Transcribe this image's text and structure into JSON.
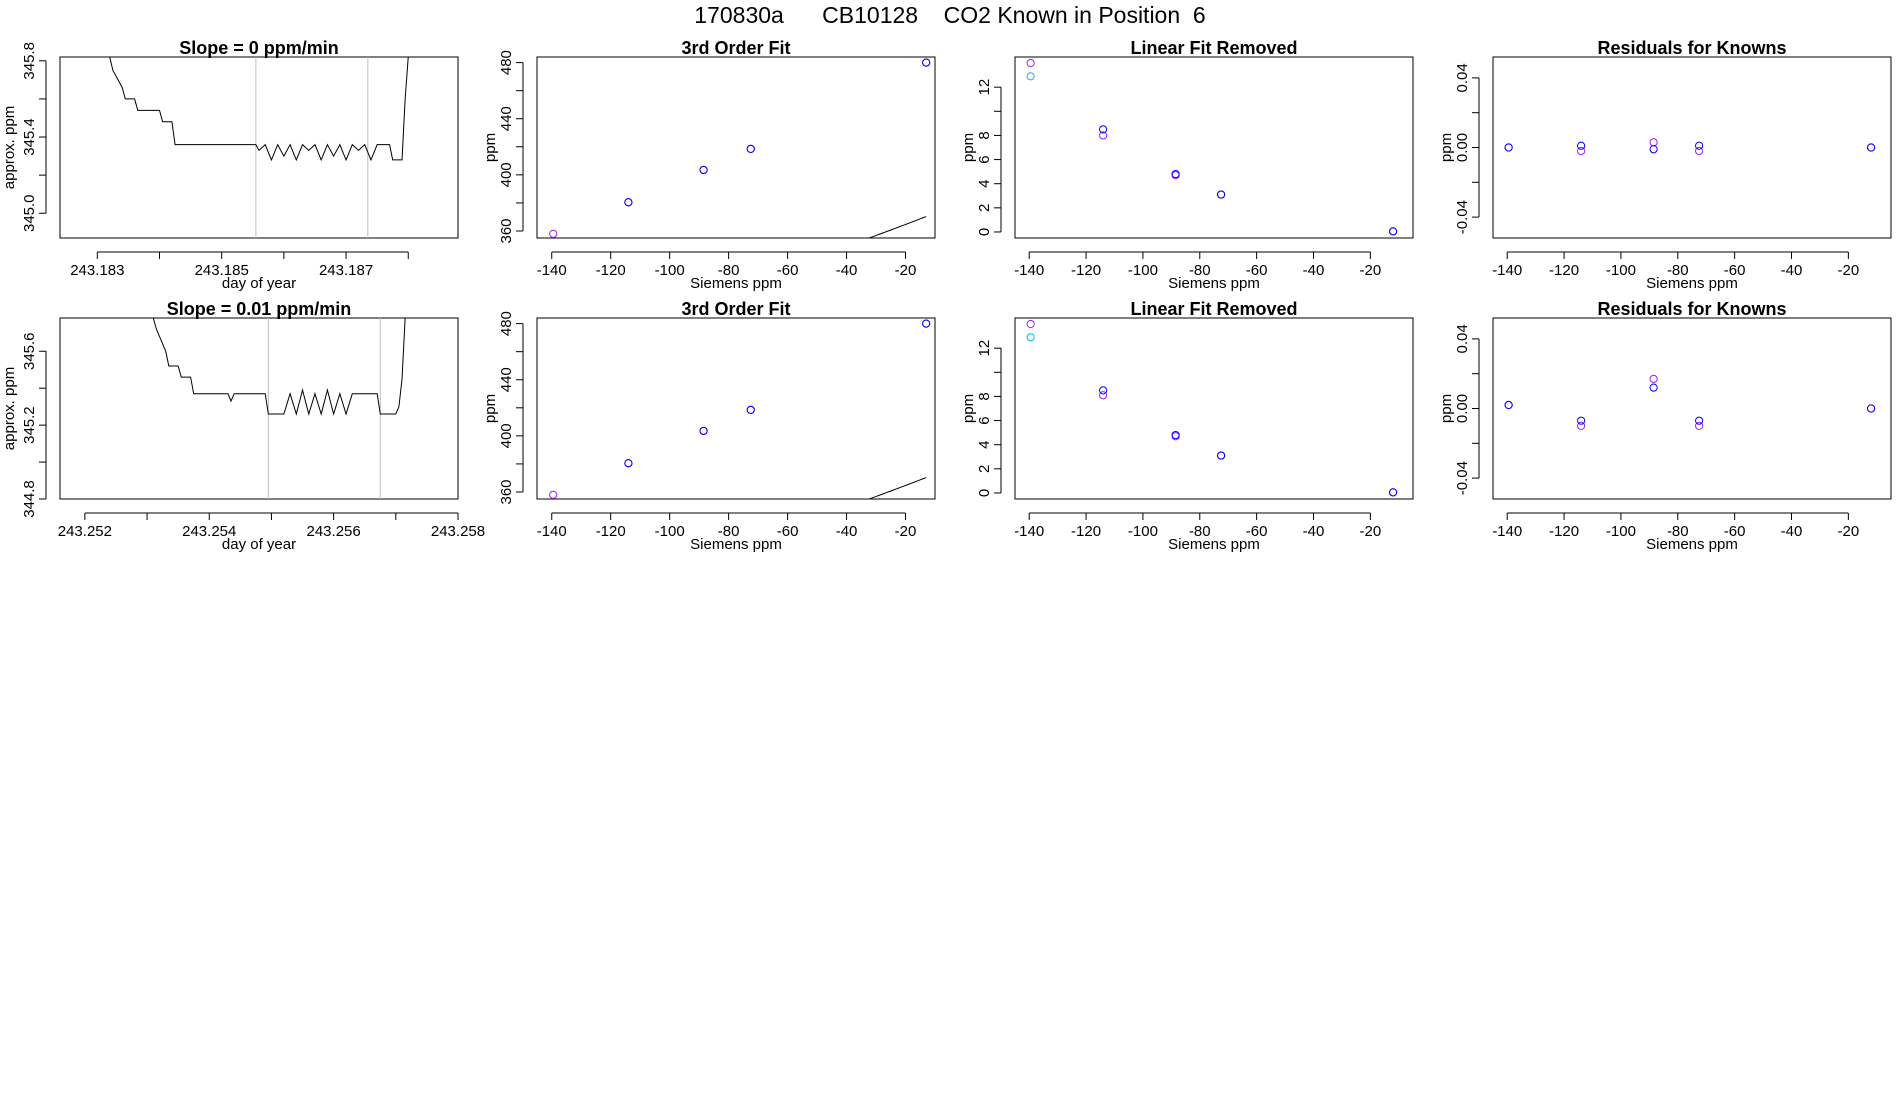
{
  "title": "170830a      CB10128    CO2 Known in Position  6",
  "colors": {
    "axis": "#000000",
    "grid": "#bebebe",
    "line": "#000000",
    "blue": "#0000ff",
    "violet": "#a020f0",
    "cyan": "#00bfd8"
  },
  "chart_data": [
    {
      "type": "line",
      "title": "Slope =  0  ppm/min",
      "xlabel": "day of year",
      "ylabel": "approx. ppm",
      "xticks": [
        243.183,
        243.184,
        243.185,
        243.186,
        243.187,
        243.188
      ],
      "xtick_labels": [
        "243.183",
        "",
        "243.185",
        "",
        "243.187",
        ""
      ],
      "yticks": [
        345.0,
        345.2,
        345.4,
        345.6,
        345.8
      ],
      "ytick_labels": [
        "345.0",
        "",
        "345.4",
        "",
        "345.8"
      ],
      "xlim": [
        243.1824,
        243.1888
      ],
      "ylim": [
        344.87,
        345.82
      ],
      "vlines": [
        243.18555,
        243.18735
      ],
      "grid": false,
      "x": [
        243.1832,
        243.18325,
        243.1833,
        243.1834,
        243.18345,
        243.1836,
        243.18365,
        243.184,
        243.18405,
        243.1842,
        243.18425,
        243.18555,
        243.1856,
        243.1857,
        243.1858,
        243.1859,
        243.186,
        243.1861,
        243.1862,
        243.1863,
        243.1864,
        243.1865,
        243.1866,
        243.1867,
        243.1868,
        243.1869,
        243.187,
        243.1871,
        243.1872,
        243.1873,
        243.1874,
        243.1875,
        243.1876,
        243.1877,
        243.18775,
        243.1879,
        243.18795,
        243.188
      ],
      "y": [
        345.82,
        345.75,
        345.72,
        345.66,
        345.6,
        345.6,
        345.54,
        345.54,
        345.48,
        345.48,
        345.36,
        345.36,
        345.33,
        345.36,
        345.28,
        345.36,
        345.3,
        345.36,
        345.28,
        345.36,
        345.33,
        345.36,
        345.28,
        345.36,
        345.3,
        345.36,
        345.28,
        345.36,
        345.33,
        345.36,
        345.28,
        345.36,
        345.36,
        345.36,
        345.28,
        345.28,
        345.6,
        345.82
      ]
    },
    {
      "type": "scatter",
      "title": "3rd Order Fit",
      "xlabel": "Siemens ppm",
      "ylabel": "ppm",
      "xticks": [
        -140,
        -120,
        -100,
        -80,
        -60,
        -40,
        -20
      ],
      "xlim": [
        -145,
        -10
      ],
      "yticks": [
        360,
        380,
        400,
        420,
        440,
        460,
        480
      ],
      "ytick_labels": [
        "360",
        "",
        "400",
        "",
        "440",
        "",
        "480"
      ],
      "ylim": [
        355,
        484
      ],
      "curve": {
        "from": -140,
        "to": -13,
        "coef": [
          381.0,
          0.84,
          0.0012,
          3.5e-06
        ]
      },
      "series": [
        {
          "color": "violet",
          "x": [
            -139.5,
            -114.0,
            -88.5,
            -72.5,
            -13.0
          ],
          "y": [
            358.0,
            380.5,
            403.5,
            418.5,
            480.0
          ]
        },
        {
          "color": "blue",
          "x": [
            -114.0,
            -88.5,
            -72.5,
            -13.0
          ],
          "y": [
            380.5,
            403.5,
            418.5,
            480.0
          ]
        }
      ]
    },
    {
      "type": "scatter",
      "title": "Linear Fit Removed",
      "xlabel": "Siemens ppm",
      "ylabel": "ppm",
      "xticks": [
        -140,
        -120,
        -100,
        -80,
        -60,
        -40,
        -20
      ],
      "xlim": [
        -145,
        -5
      ],
      "yticks": [
        0,
        2,
        4,
        6,
        8,
        10,
        12
      ],
      "ytick_labels": [
        "0",
        "2",
        "4",
        "6",
        "8",
        "",
        "12"
      ],
      "ylim": [
        -0.5,
        14.5
      ],
      "curve": {
        "from": -140,
        "to": -12,
        "coef": [
          0.73,
          0.178,
          0.00134,
          3.5e-06
        ]
      },
      "series": [
        {
          "color": "violet",
          "x": [
            -139.5,
            -114.0,
            -88.5,
            -72.5,
            -12.0
          ],
          "y": [
            14.0,
            8.0,
            4.7,
            3.1,
            0.05
          ]
        },
        {
          "color": "cyan",
          "x": [
            -139.5
          ],
          "y": [
            12.9
          ]
        },
        {
          "color": "blue",
          "x": [
            -114.0,
            -88.5,
            -72.5,
            -12.0
          ],
          "y": [
            8.5,
            4.8,
            3.1,
            0.05
          ]
        }
      ]
    },
    {
      "type": "scatter",
      "title": "Residuals for Knowns",
      "xlabel": "Siemens ppm",
      "ylabel": "ppm",
      "xticks": [
        -140,
        -120,
        -100,
        -80,
        -60,
        -40,
        -20
      ],
      "xlim": [
        -145,
        -5
      ],
      "yticks": [
        -0.04,
        -0.02,
        0.0,
        0.02,
        0.04
      ],
      "ytick_labels": [
        "-0.04",
        "",
        "0.00",
        "",
        "0.04"
      ],
      "ylim": [
        -0.052,
        0.052
      ],
      "series": [
        {
          "color": "violet",
          "x": [
            -139.5,
            -114.0,
            -88.5,
            -72.5,
            -12.0
          ],
          "y": [
            0.0,
            -0.002,
            0.003,
            -0.002,
            0.0
          ]
        },
        {
          "color": "blue",
          "x": [
            -139.5,
            -114.0,
            -88.5,
            -72.5,
            -12.0
          ],
          "y": [
            0.0,
            0.001,
            -0.001,
            0.001,
            0.0
          ]
        }
      ]
    },
    {
      "type": "line",
      "title": "Slope =  0.01  ppm/min",
      "xlabel": "day of year",
      "ylabel": "approx. ppm",
      "xticks": [
        243.252,
        243.253,
        243.254,
        243.255,
        243.256,
        243.257,
        243.258
      ],
      "xtick_labels": [
        "243.252",
        "",
        "243.254",
        "",
        "243.256",
        "",
        "243.258"
      ],
      "yticks": [
        344.8,
        345.0,
        345.2,
        345.4,
        345.6
      ],
      "ytick_labels": [
        "344.8",
        "",
        "345.2",
        "",
        "345.6"
      ],
      "xlim": [
        243.2516,
        243.258
      ],
      "ylim": [
        344.8,
        345.78
      ],
      "vlines": [
        243.25495,
        243.25675
      ],
      "grid": false,
      "x": [
        243.2531,
        243.25315,
        243.2532,
        243.2533,
        243.25335,
        243.2535,
        243.25355,
        243.2537,
        243.25375,
        243.2543,
        243.25435,
        243.2544,
        243.2549,
        243.25495,
        243.2552,
        243.2553,
        243.2554,
        243.2555,
        243.2556,
        243.2557,
        243.2558,
        243.2559,
        243.256,
        243.2561,
        243.2562,
        243.2563,
        243.2564,
        243.2565,
        243.2566,
        243.2567,
        243.25675,
        243.257,
        243.25705,
        243.2571,
        243.25715
      ],
      "y": [
        345.78,
        345.72,
        345.68,
        345.6,
        345.52,
        345.52,
        345.46,
        345.46,
        345.37,
        345.37,
        345.33,
        345.37,
        345.37,
        345.26,
        345.26,
        345.37,
        345.26,
        345.39,
        345.26,
        345.37,
        345.26,
        345.39,
        345.26,
        345.37,
        345.26,
        345.37,
        345.37,
        345.37,
        345.37,
        345.37,
        345.26,
        345.26,
        345.3,
        345.45,
        345.78
      ]
    },
    {
      "type": "scatter",
      "title": "3rd Order Fit",
      "xlabel": "Siemens ppm",
      "ylabel": "ppm",
      "xticks": [
        -140,
        -120,
        -100,
        -80,
        -60,
        -40,
        -20
      ],
      "xlim": [
        -145,
        -10
      ],
      "yticks": [
        360,
        380,
        400,
        420,
        440,
        460,
        480
      ],
      "ytick_labels": [
        "360",
        "",
        "400",
        "",
        "440",
        "",
        "480"
      ],
      "ylim": [
        355,
        484
      ],
      "curve": {
        "from": -140,
        "to": -13,
        "coef": [
          381.0,
          0.84,
          0.0012,
          3.5e-06
        ]
      },
      "series": [
        {
          "color": "violet",
          "x": [
            -139.5,
            -114.0,
            -88.5,
            -72.5,
            -13.0
          ],
          "y": [
            358.0,
            380.5,
            403.5,
            418.5,
            480.0
          ]
        },
        {
          "color": "blue",
          "x": [
            -114.0,
            -88.5,
            -72.5,
            -13.0
          ],
          "y": [
            380.5,
            403.5,
            418.5,
            480.0
          ]
        }
      ]
    },
    {
      "type": "scatter",
      "title": "Linear Fit Removed",
      "xlabel": "Siemens ppm",
      "ylabel": "ppm",
      "xticks": [
        -140,
        -120,
        -100,
        -80,
        -60,
        -40,
        -20
      ],
      "xlim": [
        -145,
        -5
      ],
      "yticks": [
        0,
        2,
        4,
        6,
        8,
        10,
        12
      ],
      "ytick_labels": [
        "0",
        "2",
        "4",
        "6",
        "8",
        "",
        "12"
      ],
      "ylim": [
        -0.5,
        14.5
      ],
      "curve": {
        "from": -140,
        "to": -12,
        "coef": [
          0.73,
          0.178,
          0.00134,
          3.5e-06
        ]
      },
      "series": [
        {
          "color": "violet",
          "x": [
            -139.5,
            -114.0,
            -88.5,
            -72.5,
            -12.0
          ],
          "y": [
            14.0,
            8.1,
            4.7,
            3.1,
            0.05
          ]
        },
        {
          "color": "cyan",
          "x": [
            -139.5
          ],
          "y": [
            12.9
          ]
        },
        {
          "color": "blue",
          "x": [
            -114.0,
            -88.5,
            -72.5,
            -12.0
          ],
          "y": [
            8.5,
            4.8,
            3.1,
            0.05
          ]
        }
      ]
    },
    {
      "type": "scatter",
      "title": "Residuals for Knowns",
      "xlabel": "Siemens ppm",
      "ylabel": "ppm",
      "xticks": [
        -140,
        -120,
        -100,
        -80,
        -60,
        -40,
        -20
      ],
      "xlim": [
        -145,
        -5
      ],
      "yticks": [
        -0.04,
        -0.02,
        0.0,
        0.02,
        0.04
      ],
      "ytick_labels": [
        "-0.04",
        "",
        "0.00",
        "",
        "0.04"
      ],
      "ylim": [
        -0.052,
        0.052
      ],
      "series": [
        {
          "color": "violet",
          "x": [
            -139.5,
            -114.0,
            -88.5,
            -72.5,
            -12.0
          ],
          "y": [
            0.002,
            -0.01,
            0.017,
            -0.01,
            0.0
          ]
        },
        {
          "color": "blue",
          "x": [
            -139.5,
            -114.0,
            -88.5,
            -72.5,
            -12.0
          ],
          "y": [
            0.002,
            -0.007,
            0.012,
            -0.007,
            0.0
          ]
        }
      ]
    }
  ]
}
